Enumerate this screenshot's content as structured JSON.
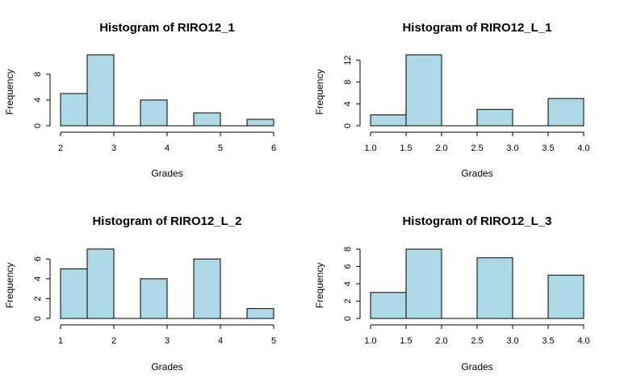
{
  "chart_data": [
    {
      "type": "bar",
      "histogram": true,
      "title": "Histogram of RIRO12_1",
      "xlabel": "Grades",
      "ylabel": "Frequency",
      "xlim": [
        2,
        6
      ],
      "ylim": [
        0,
        11
      ],
      "x_ticks": [
        "2",
        "3",
        "4",
        "5",
        "6"
      ],
      "y_ticks": [
        "0",
        "4",
        "8"
      ],
      "bin_edges": [
        2,
        2.5,
        3,
        3.5,
        4,
        4.5,
        5,
        5.5,
        6
      ],
      "values": [
        5,
        11,
        0,
        4,
        0,
        2,
        0,
        1
      ]
    },
    {
      "type": "bar",
      "histogram": true,
      "title": "Histogram of RIRO12_L_1",
      "xlabel": "Grades",
      "ylabel": "Frequency",
      "xlim": [
        1,
        4
      ],
      "ylim": [
        0,
        13
      ],
      "x_ticks": [
        "1.0",
        "1.5",
        "2.0",
        "2.5",
        "3.0",
        "3.5",
        "4.0"
      ],
      "y_ticks": [
        "0",
        "4",
        "8",
        "12"
      ],
      "bin_edges": [
        1,
        1.5,
        2,
        2.5,
        3,
        3.5,
        4
      ],
      "values": [
        2,
        13,
        0,
        3,
        0,
        5
      ]
    },
    {
      "type": "bar",
      "histogram": true,
      "title": "Histogram of RIRO12_L_2",
      "xlabel": "Grades",
      "ylabel": "Frequency",
      "xlim": [
        1,
        5
      ],
      "ylim": [
        0,
        7
      ],
      "x_ticks": [
        "1",
        "2",
        "3",
        "4",
        "5"
      ],
      "y_ticks": [
        "0",
        "2",
        "4",
        "6"
      ],
      "bin_edges": [
        1,
        1.5,
        2,
        2.5,
        3,
        3.5,
        4,
        4.5,
        5
      ],
      "values": [
        5,
        7,
        0,
        4,
        0,
        6,
        0,
        1
      ]
    },
    {
      "type": "bar",
      "histogram": true,
      "title": "Histogram of RIRO12_L_3",
      "xlabel": "Grades",
      "ylabel": "Frequency",
      "xlim": [
        1,
        4
      ],
      "ylim": [
        0,
        8
      ],
      "x_ticks": [
        "1.0",
        "1.5",
        "2.0",
        "2.5",
        "3.0",
        "3.5",
        "4.0"
      ],
      "y_ticks": [
        "0",
        "2",
        "4",
        "6",
        "8"
      ],
      "bin_edges": [
        1,
        1.5,
        2,
        2.5,
        3,
        3.5,
        4
      ],
      "values": [
        3,
        8,
        0,
        7,
        0,
        5
      ]
    }
  ]
}
